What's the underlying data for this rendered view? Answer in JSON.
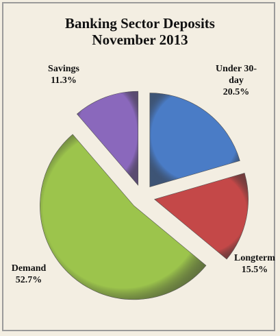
{
  "chart_data": {
    "type": "pie",
    "title": "Banking Sector Deposits",
    "subtitle": "November 2013",
    "categories": [
      "Under 30-day",
      "Longterm",
      "Demand",
      "Savings"
    ],
    "values": [
      20.5,
      15.5,
      52.7,
      11.3
    ],
    "value_labels": [
      "20.5%",
      "15.5%",
      "52.7%",
      "11.3%"
    ],
    "colors": [
      "#4a7cc6",
      "#c44848",
      "#9cc44c",
      "#8a68bc"
    ]
  }
}
